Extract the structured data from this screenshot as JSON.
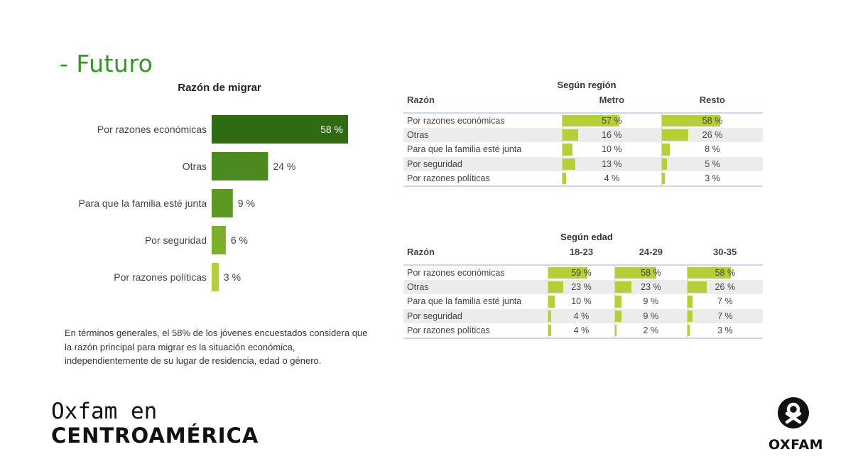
{
  "section_title": "- Futuro",
  "chart_data": [
    {
      "type": "bar",
      "orientation": "horizontal",
      "title": "Razón de migrar",
      "categories": [
        "Por razones económicas",
        "Otras",
        "Para que la familia esté junta",
        "Por seguridad",
        "Por razones políticas"
      ],
      "values": [
        58,
        24,
        9,
        6,
        3
      ],
      "value_labels": [
        "58 %",
        "24 %",
        "9 %",
        "6 %",
        "3 %"
      ],
      "colors": [
        "#2f6b13",
        "#4a8a1e",
        "#5a9a22",
        "#7cb028",
        "#b5cf37"
      ],
      "xlim": [
        0,
        58
      ]
    },
    {
      "type": "table",
      "title": "Según región",
      "row_header": "Razón",
      "columns": [
        "Metro",
        "Resto"
      ],
      "rows": [
        {
          "label": "Por razones económicas",
          "values": [
            57,
            58
          ],
          "labels": [
            "57 %",
            "58 %"
          ]
        },
        {
          "label": "Otras",
          "values": [
            16,
            26
          ],
          "labels": [
            "16 %",
            "26 %"
          ]
        },
        {
          "label": "Para que la familia esté junta",
          "values": [
            10,
            8
          ],
          "labels": [
            "10 %",
            "8 %"
          ]
        },
        {
          "label": "Por seguridad",
          "values": [
            13,
            5
          ],
          "labels": [
            "13 %",
            "5 %"
          ]
        },
        {
          "label": "Por razones políticas",
          "values": [
            4,
            3
          ],
          "labels": [
            "4 %",
            "3 %"
          ]
        }
      ],
      "bar_color": "#b5cf37",
      "max": 100
    },
    {
      "type": "table",
      "title": "Según edad",
      "row_header": "Razón",
      "columns": [
        "18-23",
        "24-29",
        "30-35"
      ],
      "rows": [
        {
          "label": "Por razones económicas",
          "values": [
            59,
            58,
            58
          ],
          "labels": [
            "59 %",
            "58 %",
            "58 %"
          ]
        },
        {
          "label": "Otras",
          "values": [
            23,
            23,
            26
          ],
          "labels": [
            "23 %",
            "23 %",
            "26 %"
          ]
        },
        {
          "label": "Para que la familia esté junta",
          "values": [
            10,
            9,
            7
          ],
          "labels": [
            "10 %",
            "9 %",
            "7 %"
          ]
        },
        {
          "label": "Por seguridad",
          "values": [
            4,
            9,
            7
          ],
          "labels": [
            "4 %",
            "9 %",
            "7 %"
          ]
        },
        {
          "label": "Por razones políticas",
          "values": [
            4,
            2,
            3
          ],
          "labels": [
            "4 %",
            "2 %",
            "3 %"
          ]
        }
      ],
      "bar_color": "#b5cf37",
      "max": 100
    }
  ],
  "note": "En términos generales, el 58% de los jóvenes encuestados considera que la razón principal para migrar es la situación económica, independientemente de su lugar de residencia, edad o género.",
  "footer": {
    "left_logo_line1": "Oxfam en",
    "left_logo_line2": "CENTROAMÉRICA",
    "right_logo_text": "OXFAM"
  }
}
